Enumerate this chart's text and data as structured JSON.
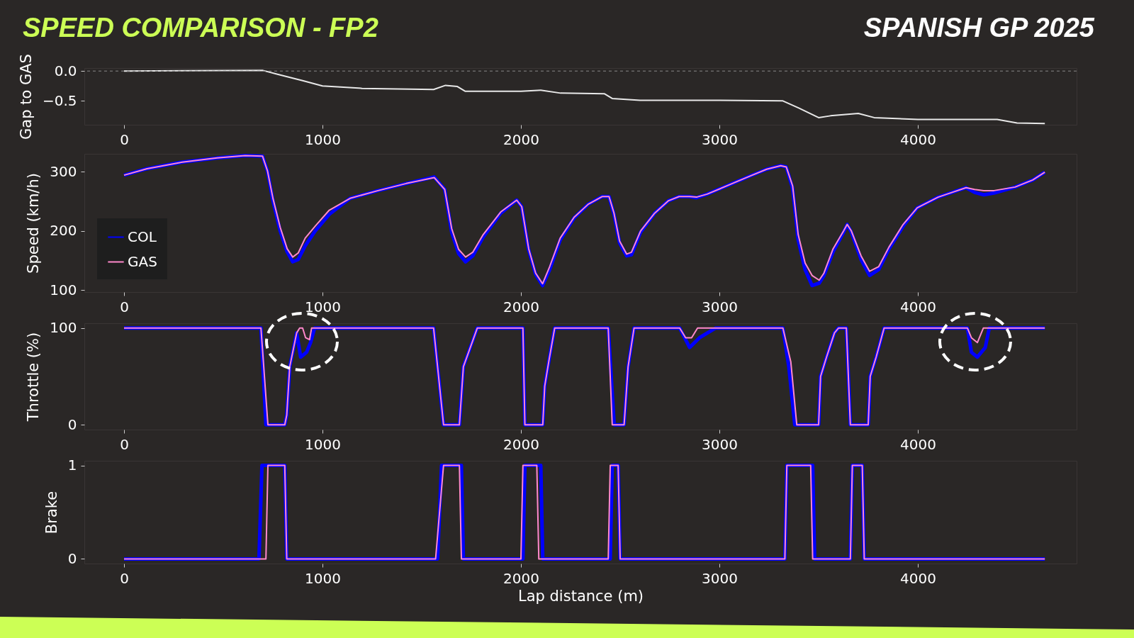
{
  "chart_data": [
    {
      "type": "line",
      "title": "SPEED COMPARISON - FP2",
      "subtitle": "SPANISH GP 2025",
      "ylabel": "Gap to GAS",
      "xlim": [
        -200,
        4800
      ],
      "xticks": [
        0,
        1000,
        2000,
        3000,
        4000
      ],
      "ylim": [
        -0.9,
        0.05
      ],
      "yticks": [
        {
          "value": 0,
          "label": "0.0"
        },
        {
          "value": -0.5,
          "label": "−0.5"
        }
      ],
      "ref_lines": [
        {
          "axis": "y",
          "value": 0,
          "label": null,
          "color": "#888888",
          "line_style": "dashed"
        }
      ],
      "x": [
        0,
        700,
        780,
        900,
        1000,
        1200,
        1560,
        1620,
        1680,
        1720,
        2000,
        2100,
        2200,
        2420,
        2460,
        2600,
        3000,
        3320,
        3400,
        3500,
        3560,
        3700,
        3780,
        4000,
        4400,
        4500,
        4640
      ],
      "series": [
        {
          "color": "#e8e8e8",
          "values": [
            0,
            0.01,
            -0.06,
            -0.16,
            -0.25,
            -0.29,
            -0.31,
            -0.24,
            -0.26,
            -0.34,
            -0.34,
            -0.32,
            -0.37,
            -0.38,
            -0.46,
            -0.49,
            -0.49,
            -0.5,
            -0.62,
            -0.78,
            -0.75,
            -0.71,
            -0.78,
            -0.81,
            -0.81,
            -0.87,
            -0.88
          ]
        }
      ]
    },
    {
      "type": "line",
      "ylabel": "Speed (km/h)",
      "legend": "bottom left",
      "xlim": [
        -200,
        4800
      ],
      "xticks": [
        0,
        1000,
        2000,
        3000,
        4000
      ],
      "ylim": [
        97,
        330
      ],
      "yticks": [
        100,
        200,
        300
      ],
      "x": [
        0,
        116,
        293,
        469,
        610,
        698,
        723,
        751,
        787,
        822,
        850,
        878,
        913,
        963,
        1034,
        1139,
        1280,
        1422,
        1563,
        1616,
        1651,
        1686,
        1721,
        1757,
        1810,
        1898,
        1979,
        2004,
        2039,
        2074,
        2109,
        2145,
        2198,
        2268,
        2339,
        2409,
        2444,
        2469,
        2497,
        2533,
        2557,
        2603,
        2674,
        2744,
        2797,
        2850,
        2885,
        2938,
        3044,
        3150,
        3238,
        3309,
        3337,
        3369,
        3397,
        3432,
        3467,
        3503,
        3527,
        3573,
        3626,
        3644,
        3665,
        3714,
        3757,
        3803,
        3855,
        3926,
        3997,
        4102,
        4173,
        4243,
        4286,
        4332,
        4384,
        4490,
        4579,
        4640
      ],
      "series": [
        {
          "name": "COL",
          "color": "#0000ff",
          "values": [
            294,
            305,
            316,
            323,
            327,
            326,
            301,
            250,
            200,
            165,
            148,
            152,
            175,
            200,
            228,
            255,
            268,
            280,
            291,
            270,
            198,
            162,
            148,
            158,
            190,
            230,
            252,
            241,
            168,
            127,
            108,
            135,
            185,
            222,
            245,
            258,
            258,
            228,
            180,
            158,
            160,
            198,
            230,
            251,
            258,
            258,
            256,
            262,
            277,
            292,
            304,
            310,
            308,
            272,
            185,
            135,
            108,
            112,
            125,
            165,
            198,
            211,
            198,
            152,
            125,
            135,
            170,
            208,
            239,
            257,
            265,
            273,
            265,
            261,
            264,
            274,
            286,
            299
          ]
        },
        {
          "name": "GAS",
          "color": "#ff88cc",
          "values": [
            294,
            305,
            316,
            323,
            327,
            326,
            301,
            254,
            206,
            170,
            156,
            163,
            188,
            208,
            235,
            255,
            268,
            280,
            290,
            270,
            204,
            169,
            156,
            164,
            194,
            232,
            252,
            241,
            170,
            129,
            111,
            140,
            188,
            223,
            245,
            258,
            258,
            230,
            183,
            161,
            164,
            200,
            230,
            251,
            258,
            258,
            257,
            262,
            277,
            292,
            304,
            310,
            308,
            276,
            194,
            146,
            125,
            117,
            129,
            170,
            200,
            211,
            200,
            158,
            132,
            140,
            173,
            211,
            239,
            257,
            265,
            273,
            270,
            268,
            268,
            274,
            286,
            299
          ]
        }
      ]
    },
    {
      "type": "line",
      "ylabel": "Throttle (%)",
      "xlim": [
        -200,
        4800
      ],
      "xticks": [
        0,
        1000,
        2000,
        3000,
        4000
      ],
      "ylim": [
        -5,
        105
      ],
      "yticks": [
        0,
        100
      ],
      "series": [
        {
          "color": "#0000ff",
          "x": [
            0,
            690,
            715,
            810,
            820,
            835,
            870,
            890,
            920,
            940,
            960,
            1560,
            1610,
            1690,
            1710,
            1780,
            2010,
            2020,
            2110,
            2120,
            2140,
            2170,
            2440,
            2470,
            2520,
            2540,
            2570,
            2800,
            2850,
            2900,
            2980,
            3320,
            3350,
            3380,
            3500,
            3510,
            3540,
            3580,
            3600,
            3640,
            3660,
            3750,
            3760,
            3790,
            3830,
            4250,
            4270,
            4300,
            4340,
            4360,
            4640
          ],
          "values": [
            100,
            100,
            0,
            0,
            10,
            60,
            95,
            70,
            75,
            85,
            100,
            100,
            0,
            0,
            60,
            100,
            100,
            0,
            0,
            40,
            65,
            100,
            100,
            0,
            0,
            60,
            100,
            100,
            80,
            90,
            100,
            100,
            60,
            0,
            0,
            50,
            70,
            95,
            100,
            100,
            0,
            0,
            50,
            70,
            100,
            100,
            75,
            70,
            80,
            100,
            100
          ]
        },
        {
          "color": "#ff88cc",
          "x": [
            0,
            690,
            725,
            810,
            820,
            835,
            870,
            885,
            900,
            915,
            935,
            945,
            1560,
            1610,
            1690,
            1710,
            1780,
            2010,
            2020,
            2110,
            2120,
            2140,
            2170,
            2440,
            2460,
            2520,
            2540,
            2570,
            2800,
            2830,
            2860,
            2890,
            3320,
            3360,
            3390,
            3500,
            3510,
            3540,
            3580,
            3600,
            3640,
            3660,
            3750,
            3760,
            3790,
            3830,
            4250,
            4270,
            4300,
            4330,
            4640
          ],
          "values": [
            100,
            100,
            0,
            0,
            10,
            60,
            95,
            100,
            100,
            90,
            88,
            100,
            100,
            0,
            0,
            60,
            100,
            100,
            0,
            0,
            40,
            65,
            100,
            100,
            0,
            0,
            60,
            100,
            100,
            90,
            90,
            100,
            100,
            65,
            0,
            0,
            50,
            70,
            95,
            100,
            100,
            0,
            0,
            50,
            70,
            100,
            100,
            90,
            85,
            100,
            100
          ]
        }
      ]
    },
    {
      "type": "line",
      "ylabel": "Brake",
      "xlabel": "Lap distance (m)",
      "xlim": [
        -200,
        4800
      ],
      "xticks": [
        0,
        1000,
        2000,
        3000,
        4000
      ],
      "ylim": [
        -0.05,
        1.05
      ],
      "yticks": [
        0,
        1
      ],
      "series": [
        {
          "color": "#0000ff",
          "x": [
            0,
            680,
            695,
            810,
            820,
            1580,
            1600,
            1700,
            1710,
            2010,
            2020,
            2100,
            2110,
            2450,
            2460,
            2490,
            2500,
            3330,
            3340,
            3470,
            3480,
            3660,
            3670,
            3720,
            3730,
            4640
          ],
          "values": [
            0,
            0,
            1,
            1,
            0,
            0,
            1,
            1,
            0,
            0,
            1,
            1,
            0,
            0,
            1,
            1,
            0,
            0,
            1,
            1,
            0,
            0,
            1,
            1,
            0,
            0
          ]
        },
        {
          "color": "#ff88cc",
          "x": [
            0,
            715,
            725,
            810,
            820,
            1570,
            1610,
            1690,
            1700,
            2000,
            2010,
            2080,
            2090,
            2440,
            2450,
            2490,
            2500,
            3330,
            3340,
            3460,
            3470,
            3660,
            3670,
            3720,
            3730,
            4640
          ],
          "values": [
            0,
            0,
            1,
            1,
            0,
            0,
            1,
            1,
            0,
            0,
            1,
            1,
            0,
            0,
            1,
            1,
            0,
            0,
            1,
            1,
            0,
            0,
            1,
            1,
            0,
            0
          ]
        }
      ]
    }
  ]
}
